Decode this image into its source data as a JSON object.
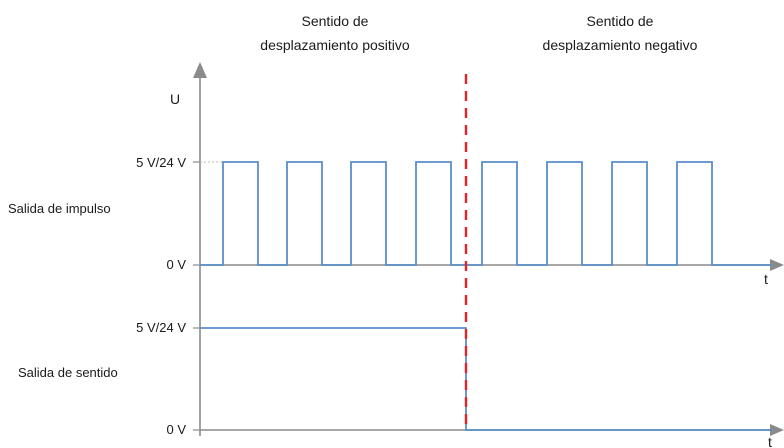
{
  "header": {
    "positive_line1": "Sentido de",
    "positive_line2": "desplazamiento positivo",
    "negative_line1": "Sentido de",
    "negative_line2": "desplazamiento negativo"
  },
  "axes": {
    "u_label": "U",
    "t_label_top": "t",
    "t_label_bottom": "t"
  },
  "pulse_output": {
    "label": "Salida de impulso",
    "high_level": "5 V/24 V",
    "low_level": "0 V",
    "pulses_positive": 4,
    "pulses_negative": 4
  },
  "direction_output": {
    "label": "Salida de sentido",
    "high_level": "5 V/24 V",
    "low_level": "0 V",
    "state_positive": "high",
    "state_negative": "low"
  },
  "colors": {
    "signal": "#5b8ec9",
    "divider": "#e0242b",
    "axis": "#8a8a8a"
  }
}
